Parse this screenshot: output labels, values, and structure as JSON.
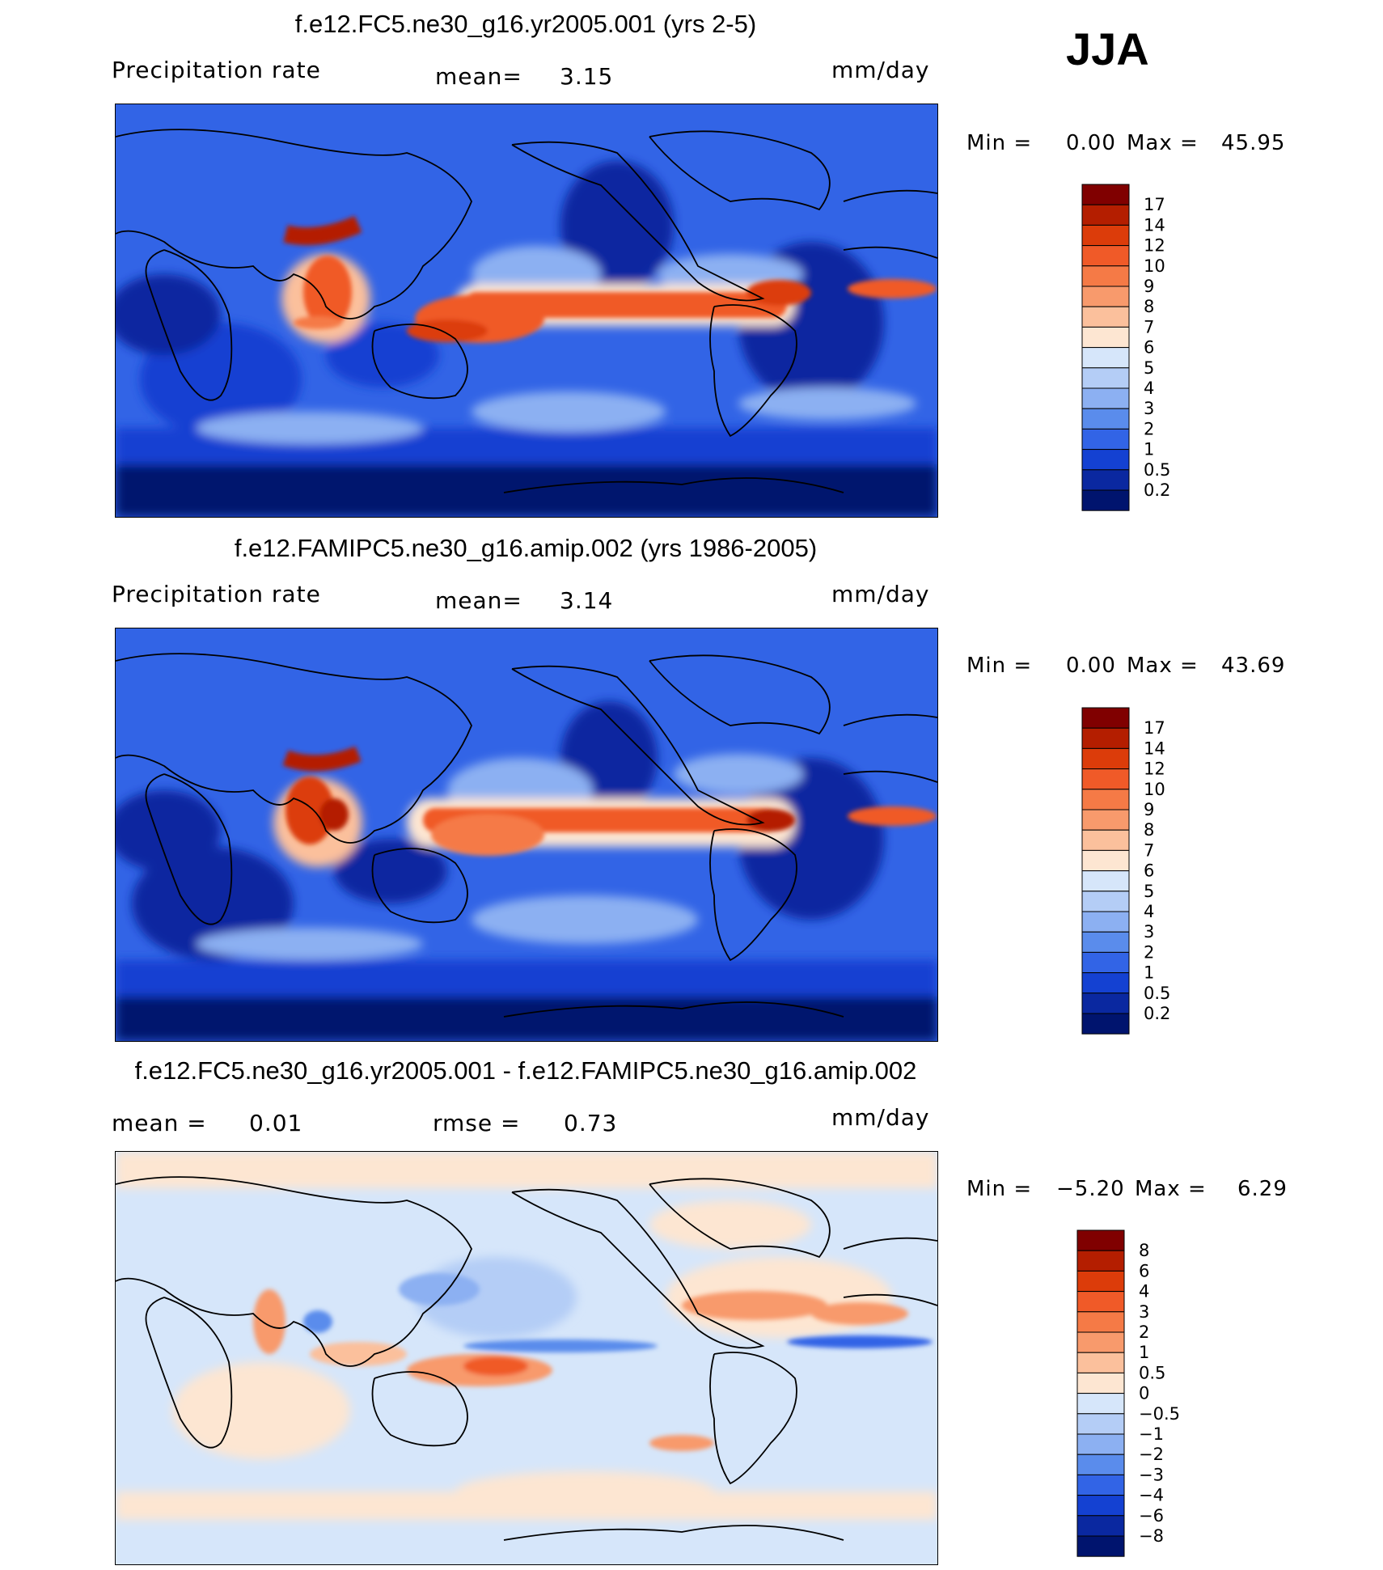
{
  "season": "JJA",
  "panels": [
    {
      "title": "f.e12.FC5.ne30_g16.yr2005.001 (yrs 2-5)",
      "left_label": "Precipitation rate",
      "mean_label": "mean=",
      "mean_value": "3.15",
      "units": "mm/day",
      "min_label": "Min =",
      "min_value": "0.00",
      "max_label": "Max =",
      "max_value": "45.95"
    },
    {
      "title": "f.e12.FAMIPC5.ne30_g16.amip.002 (yrs 1986-2005)",
      "left_label": "Precipitation rate",
      "mean_label": "mean=",
      "mean_value": "3.14",
      "units": "mm/day",
      "min_label": "Min =",
      "min_value": "0.00",
      "max_label": "Max =",
      "max_value": "43.69"
    },
    {
      "title": "f.e12.FC5.ne30_g16.yr2005.001 - f.e12.FAMIPC5.ne30_g16.amip.002",
      "mean_label": "mean =",
      "mean_value": "0.01",
      "rmse_label": "rmse =",
      "rmse_value": "0.73",
      "units": "mm/day",
      "min_label": "Min =",
      "min_value": "−5.20",
      "max_label": "Max =",
      "max_value": "6.29"
    }
  ],
  "colorbars": {
    "precip": {
      "labels": [
        "17",
        "14",
        "12",
        "10",
        "9",
        "8",
        "7",
        "6",
        "5",
        "4",
        "3",
        "2",
        "1",
        "0.5",
        "0.2"
      ],
      "colors": [
        "#800000",
        "#b41e00",
        "#dc3c0a",
        "#f05a28",
        "#f57a46",
        "#f89a6c",
        "#fbc09c",
        "#fde6d2",
        "#d6e6fa",
        "#b4cdf6",
        "#8cb0f2",
        "#5a8cec",
        "#3264e6",
        "#1441d2",
        "#0a28a0",
        "#00146e"
      ]
    },
    "diff": {
      "labels": [
        "8",
        "6",
        "4",
        "3",
        "2",
        "1",
        "0.5",
        "0",
        "−0.5",
        "−1",
        "−2",
        "−3",
        "−4",
        "−6",
        "−8"
      ],
      "colors": [
        "#800000",
        "#b41e00",
        "#dc3c0a",
        "#f05a28",
        "#f57a46",
        "#f89a6c",
        "#fbc09c",
        "#fde6d2",
        "#d6e6fa",
        "#b4cdf6",
        "#8cb0f2",
        "#5a8cec",
        "#3264e6",
        "#1441d2",
        "#0a28a0",
        "#00146e"
      ]
    }
  }
}
